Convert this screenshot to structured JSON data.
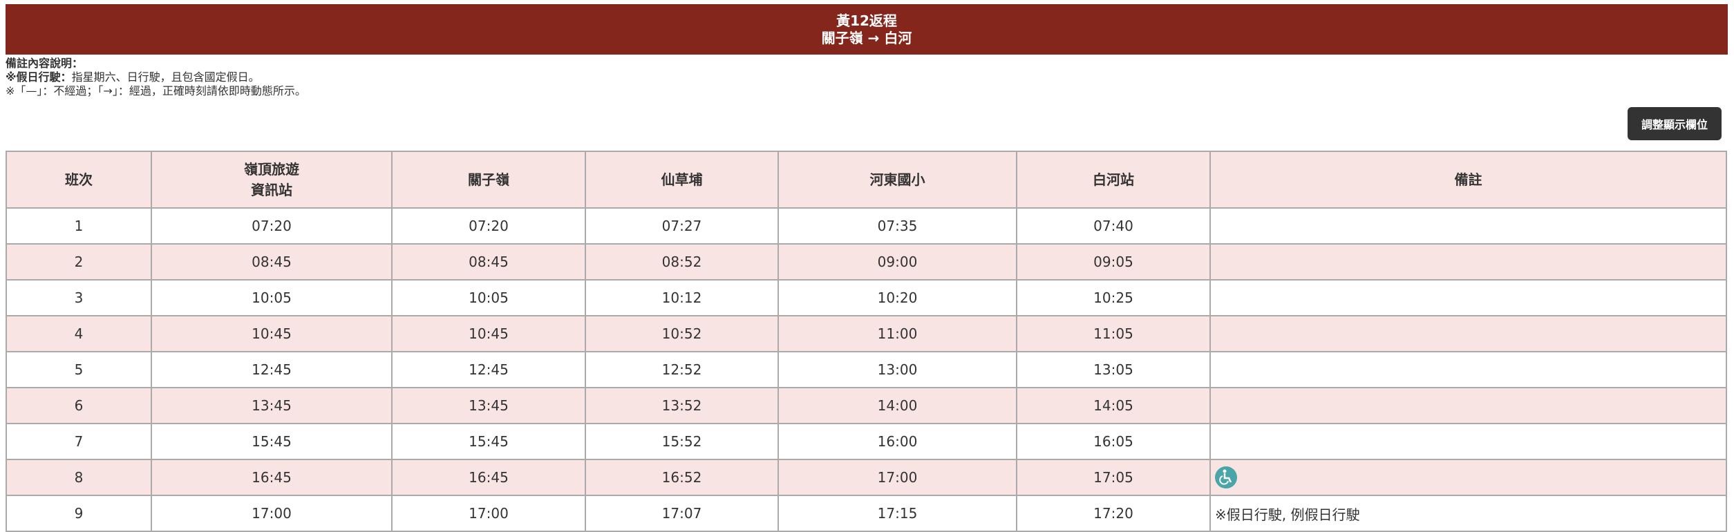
{
  "header": {
    "title_line1": "黃12返程",
    "title_line2": "關子嶺 → 白河"
  },
  "notes": {
    "heading": "備註內容說明：",
    "line1_bold": "※假日行駛：",
    "line1_text": "指星期六、日行駛，且包含國定假日。",
    "line2": "※「—」：不經過；「→」：經過，正確時刻請依即時動態所示。"
  },
  "toolbar": {
    "adjust_columns_label": "調整顯示欄位"
  },
  "table": {
    "headers": [
      "班次",
      "嶺頂旅遊\n資訊站",
      "關子嶺",
      "仙草埔",
      "河東國小",
      "白河站",
      "備註"
    ],
    "rows": [
      {
        "no": "1",
        "times": [
          "07:20",
          "07:20",
          "07:27",
          "07:35",
          "07:40"
        ],
        "note": ""
      },
      {
        "no": "2",
        "times": [
          "08:45",
          "08:45",
          "08:52",
          "09:00",
          "09:05"
        ],
        "note": ""
      },
      {
        "no": "3",
        "times": [
          "10:05",
          "10:05",
          "10:12",
          "10:20",
          "10:25"
        ],
        "note": ""
      },
      {
        "no": "4",
        "times": [
          "10:45",
          "10:45",
          "10:52",
          "11:00",
          "11:05"
        ],
        "note": ""
      },
      {
        "no": "5",
        "times": [
          "12:45",
          "12:45",
          "12:52",
          "13:00",
          "13:05"
        ],
        "note": ""
      },
      {
        "no": "6",
        "times": [
          "13:45",
          "13:45",
          "13:52",
          "14:00",
          "14:05"
        ],
        "note": ""
      },
      {
        "no": "7",
        "times": [
          "15:45",
          "15:45",
          "15:52",
          "16:00",
          "16:05"
        ],
        "note": ""
      },
      {
        "no": "8",
        "times": [
          "16:45",
          "16:45",
          "16:52",
          "17:00",
          "17:05"
        ],
        "note": "",
        "icon": "wheelchair-accessible-icon"
      },
      {
        "no": "9",
        "times": [
          "17:00",
          "17:00",
          "17:07",
          "17:15",
          "17:20"
        ],
        "note": "※假日行駛, 例假日行駛"
      }
    ]
  },
  "colors": {
    "title_bar": "#85261c",
    "row_alt": "#f8e4e3",
    "accessible_icon": "#4aa5a8",
    "button": "#333333"
  }
}
